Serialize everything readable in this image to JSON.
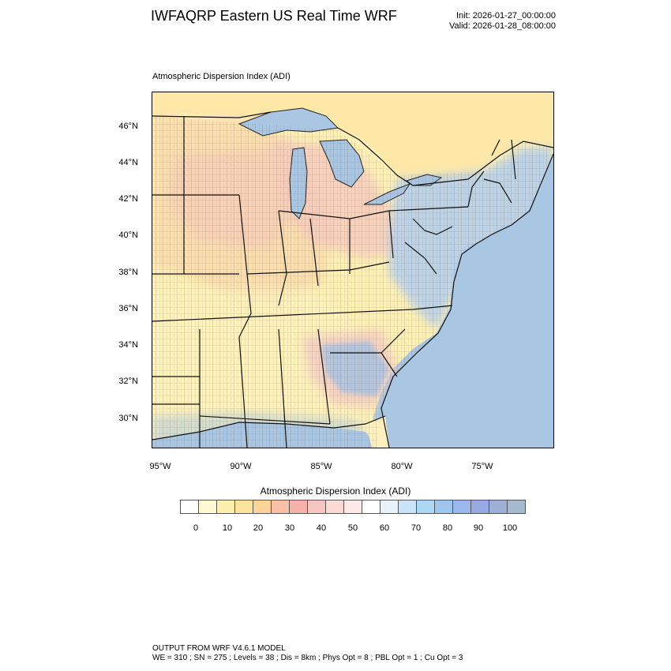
{
  "header": {
    "title": "IWFAQRP Eastern US Real Time WRF",
    "init": "Init: 2026-01-27_00:00:00",
    "valid": "Valid: 2026-01-28_08:00:00"
  },
  "map": {
    "title": "Atmospheric Dispersion Index   (ADI)",
    "lat_labels": [
      "46°N",
      "44°N",
      "42°N",
      "40°N",
      "38°N",
      "36°N",
      "34°N",
      "32°N",
      "30°N"
    ],
    "lon_labels": [
      "95°W",
      "90°W",
      "85°W",
      "80°W",
      "75°W"
    ],
    "colors": {
      "ocean": "#a9c7e2",
      "lakes": "#a9c7e2",
      "canada": "#ffe9b0",
      "low_adi": "#fff3b8",
      "mid_adi": "#f9d8b0",
      "pink_adi": "#f7c9c3",
      "high_adi": "#b9cfe8"
    }
  },
  "legend": {
    "title": "Atmospheric Dispersion Index  (ADI)",
    "tick_labels": [
      "0",
      "10",
      "20",
      "30",
      "40",
      "50",
      "60",
      "70",
      "80",
      "90",
      "100"
    ],
    "colors": [
      "#ffffff",
      "#fff8d0",
      "#ffefae",
      "#ffe29c",
      "#fdd39a",
      "#f9c0a5",
      "#f6b2aa",
      "#f8c6c0",
      "#fbd9d4",
      "#fde9e6",
      "#ffffff",
      "#e9f1fb",
      "#c9e4f9",
      "#a9d9f7",
      "#9cc7f1",
      "#9bb8ec",
      "#98a8e3",
      "#9fb0d8",
      "#a7b9cf"
    ]
  },
  "footer": {
    "line1": "OUTPUT FROM WRF V4.6.1 MODEL",
    "line2": "WE = 310 ; SN = 275 ; Levels = 38 ; Dis = 8km ; Phys Opt = 8 ; PBL Opt = 1 ; Cu Opt = 3"
  }
}
